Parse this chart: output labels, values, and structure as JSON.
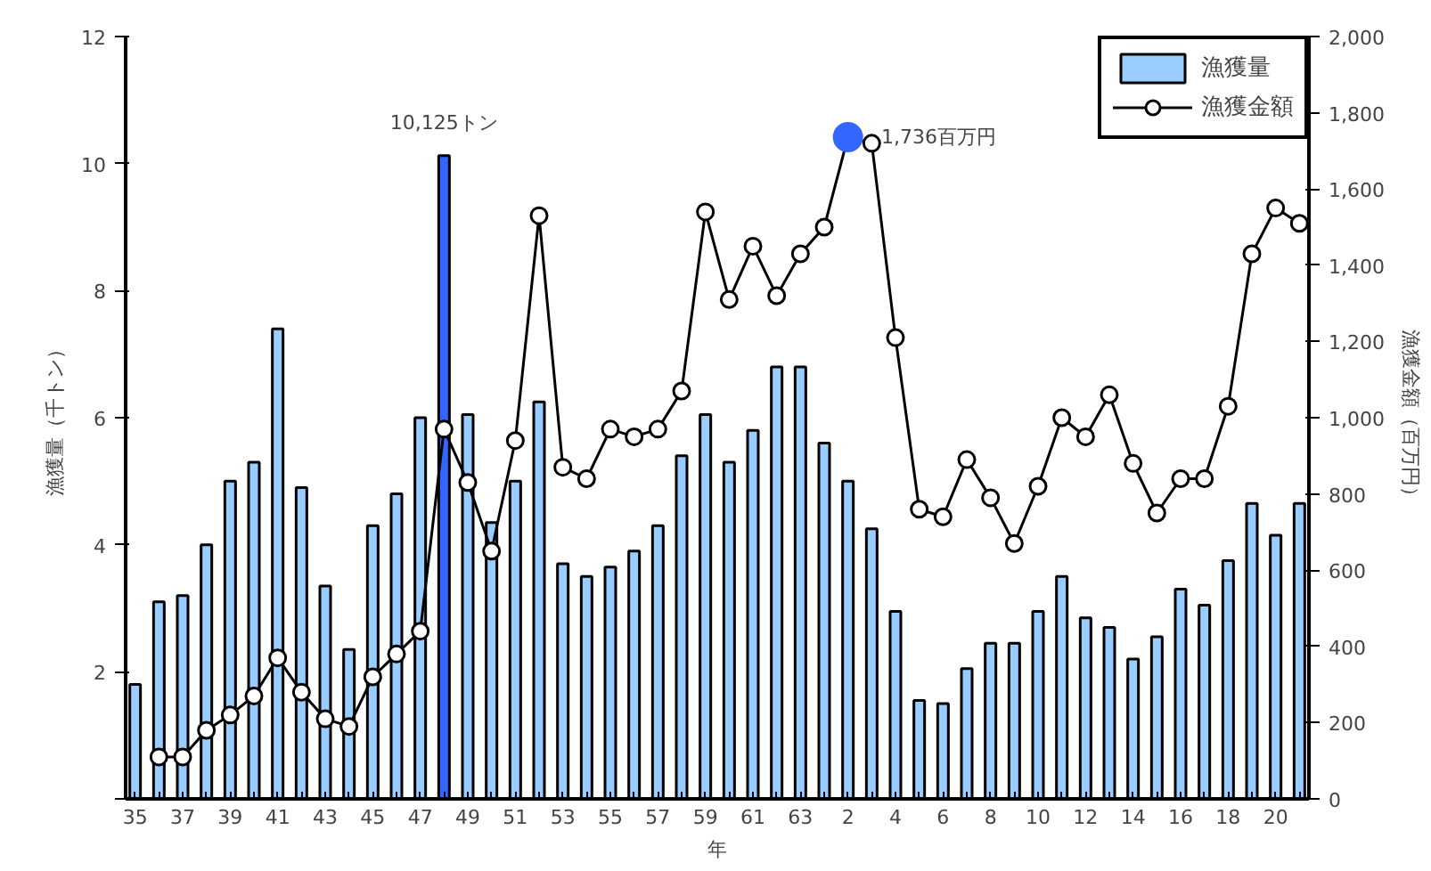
{
  "chart_data": {
    "type": "bar",
    "xlabel": "年",
    "ylabel": "漁獲量（千トン）",
    "y2label": "漁獲金額（百万円）",
    "categories": [
      "35",
      null,
      "37",
      null,
      "39",
      null,
      "41",
      null,
      "43",
      null,
      "45",
      null,
      "47",
      null,
      "49",
      null,
      "51",
      null,
      "53",
      null,
      "55",
      null,
      "57",
      null,
      "59",
      null,
      "61",
      null,
      "63",
      null,
      "2",
      null,
      "4",
      null,
      "6",
      null,
      "8",
      null,
      "10",
      null,
      "12",
      null,
      "14",
      null,
      "16",
      null,
      "18",
      null,
      "20",
      null
    ],
    "series": [
      {
        "name": "漁獲量",
        "color": "#99ccff",
        "colors": [
          "#99ccff",
          "#99ccff",
          "#99ccff",
          "#99ccff",
          "#99ccff",
          "#99ccff",
          "#99ccff",
          "#99ccff",
          "#99ccff",
          "#99ccff",
          "#99ccff",
          "#99ccff",
          "#99ccff",
          "#3366ff",
          "#99ccff",
          "#99ccff",
          "#99ccff",
          "#99ccff",
          "#99ccff",
          "#99ccff",
          "#99ccff",
          "#99ccff",
          "#99ccff",
          "#99ccff",
          "#99ccff",
          "#99ccff",
          "#99ccff",
          "#99ccff",
          "#99ccff",
          "#99ccff",
          "#99ccff",
          "#99ccff",
          "#99ccff",
          "#99ccff",
          "#99ccff",
          "#99ccff",
          "#99ccff",
          "#99ccff",
          "#99ccff",
          "#99ccff",
          "#99ccff",
          "#99ccff",
          "#99ccff",
          "#99ccff",
          "#99ccff",
          "#99ccff",
          "#99ccff",
          "#99ccff",
          "#99ccff",
          "#99ccff"
        ],
        "values": [
          1.8,
          3.1,
          3.2,
          4.0,
          5.0,
          5.3,
          7.4,
          4.9,
          3.35,
          2.35,
          4.3,
          4.8,
          6.0,
          10.125,
          6.05,
          4.35,
          5.0,
          6.25,
          3.7,
          3.5,
          3.65,
          3.9,
          4.3,
          5.4,
          6.05,
          5.3,
          5.8,
          6.8,
          6.8,
          5.6,
          5.0,
          4.25,
          2.95,
          1.55,
          1.5,
          2.05,
          2.45,
          2.45,
          2.95,
          3.5,
          2.85,
          2.7,
          2.2,
          2.55,
          3.3,
          3.05,
          3.75,
          4.65,
          4.15,
          4.65
        ]
      },
      {
        "name": "漁獲金額",
        "type": "line",
        "axis": "y2",
        "color": "#000000",
        "values": [
          null,
          110,
          110,
          180,
          220,
          270,
          370,
          280,
          210,
          190,
          320,
          380,
          440,
          970,
          830,
          650,
          940,
          1530,
          870,
          840,
          970,
          950,
          970,
          1070,
          1540,
          1310,
          1450,
          1320,
          1430,
          1500,
          1736,
          1720,
          1210,
          760,
          740,
          890,
          790,
          670,
          820,
          1000,
          950,
          1060,
          880,
          750,
          840,
          840,
          1030,
          1430,
          1550,
          1510
        ]
      },
      {
        "type": "scatter",
        "axis": "y2",
        "color": "#3366ff",
        "x": [
          "2"
        ],
        "values": [
          1736
        ],
        "value_labels": [
          "1,736百万円"
        ]
      }
    ],
    "ylim": [
      0,
      12
    ],
    "yticks": [
      {
        "value": 0,
        "label": null
      },
      2,
      4,
      6,
      8,
      10,
      12
    ],
    "y2lim": [
      0,
      2000
    ],
    "y2ticks": [
      0,
      200,
      400,
      600,
      800,
      {
        "value": 1000,
        "label": "1,000"
      },
      {
        "value": 1200,
        "label": "1,200"
      },
      {
        "value": 1400,
        "label": "1,400"
      },
      {
        "value": 1600,
        "label": "1,600"
      },
      {
        "value": 1800,
        "label": "1,800"
      },
      {
        "value": 2000,
        "label": "2,000"
      }
    ],
    "annotations": [
      "10,125トン"
    ],
    "marker": "circle",
    "grid": false,
    "legend": "top right"
  }
}
